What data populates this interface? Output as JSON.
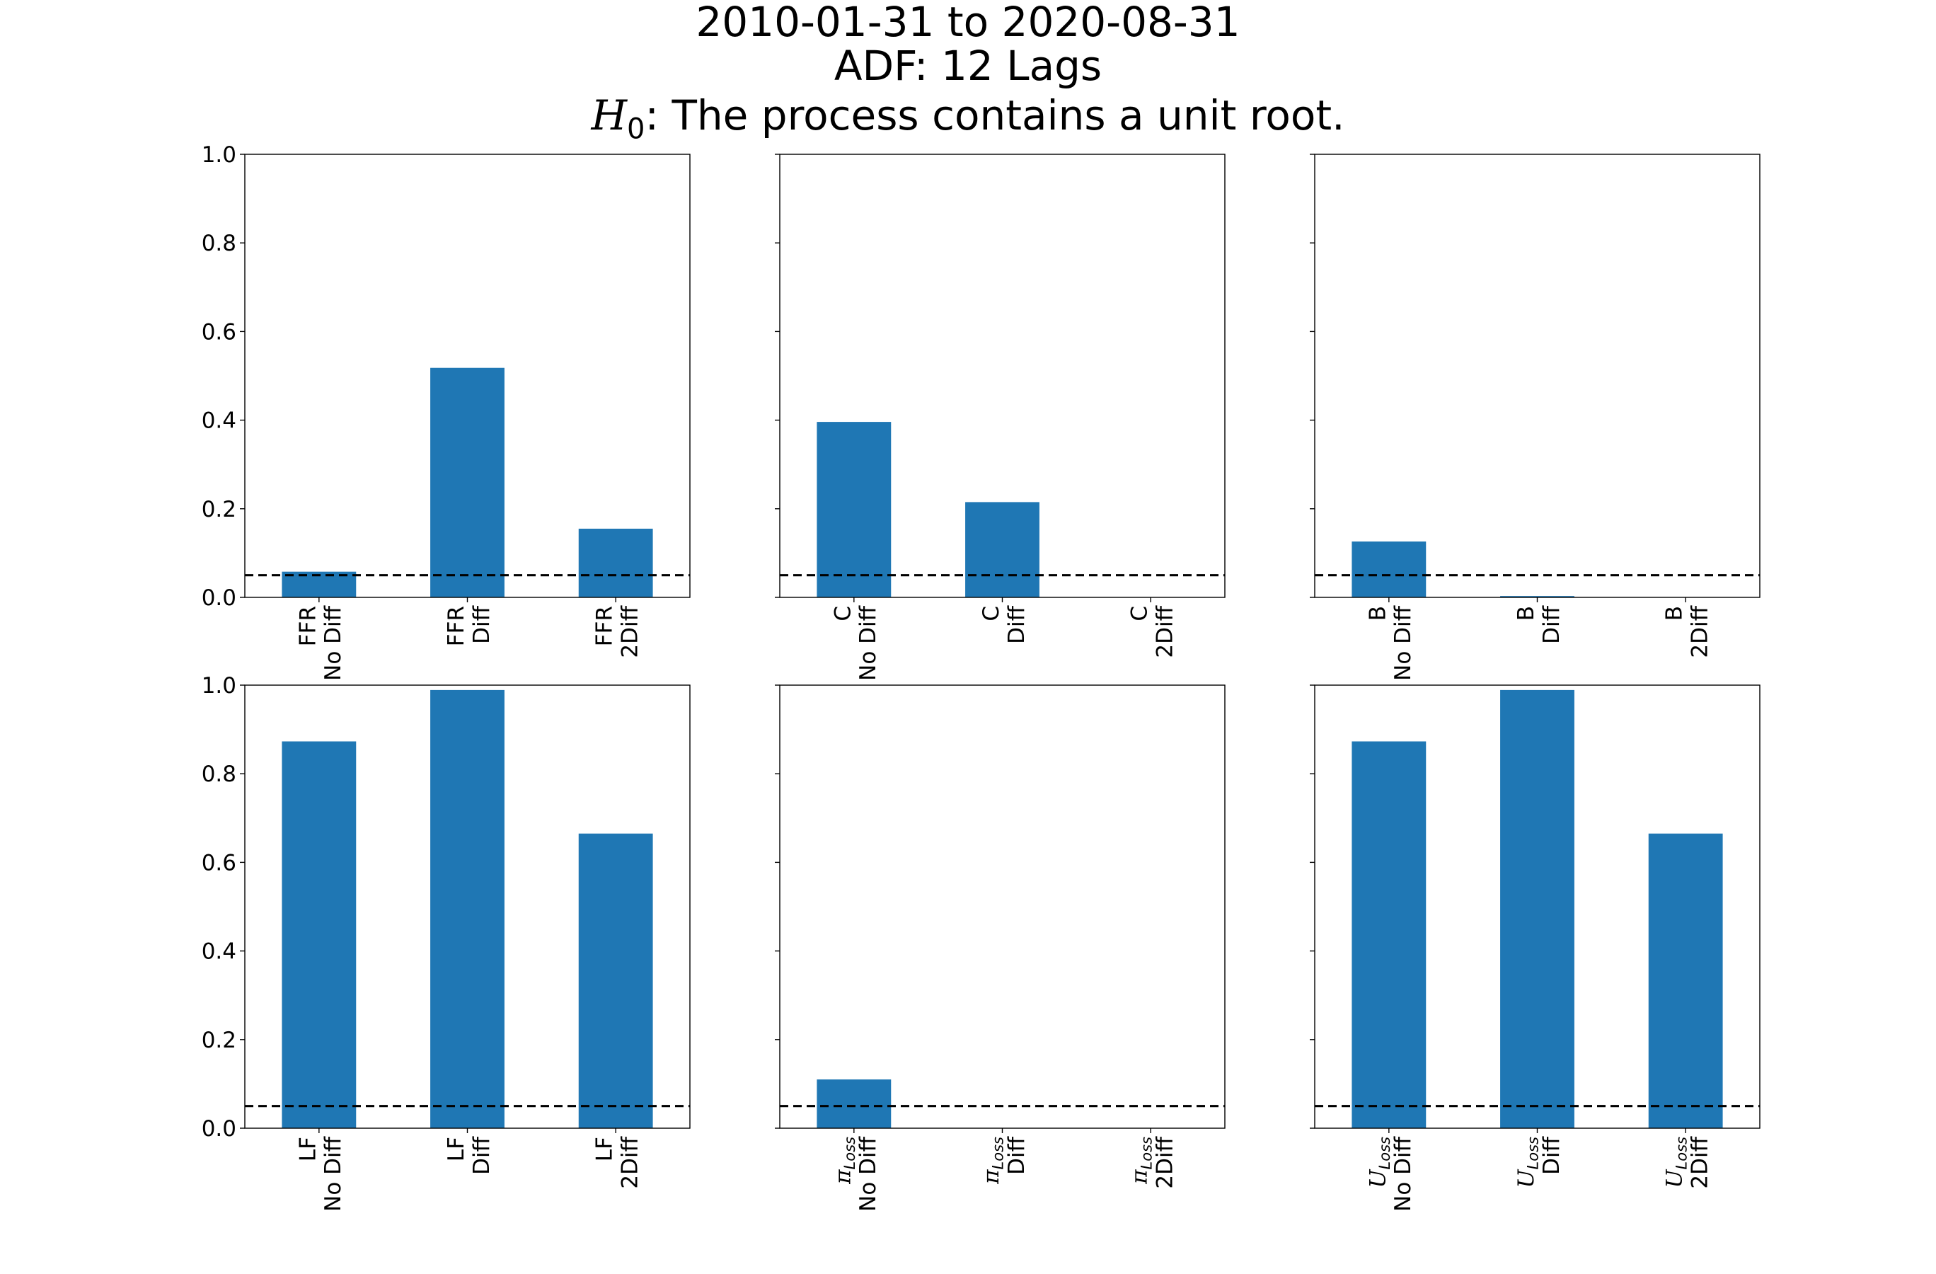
{
  "title": {
    "line1": "2010-01-31 to 2020-08-31",
    "line2": "ADF: 12 Lags",
    "line3_symbol": "H",
    "line3_subscript": "0",
    "line3_text": ":  The process contains a unit root."
  },
  "colors": {
    "bar": "#1f77b4",
    "reference_line": "#000000",
    "axes": "#000000"
  },
  "chart_data": [
    {
      "type": "bar",
      "ylim": [
        0,
        1.0
      ],
      "yticks": [
        "0.0",
        "0.2",
        "0.4",
        "0.6",
        "0.8",
        "1.0"
      ],
      "show_ytick_labels": true,
      "reference_line": 0.05,
      "categories": [
        {
          "name": "FFR",
          "sub": "",
          "diff": "No Diff",
          "value": 0.058
        },
        {
          "name": "FFR",
          "sub": "",
          "diff": "Diff",
          "value": 0.518
        },
        {
          "name": "FFR",
          "sub": "",
          "diff": "2Diff",
          "value": 0.155
        }
      ]
    },
    {
      "type": "bar",
      "ylim": [
        0,
        1.0
      ],
      "yticks": [
        "0.0",
        "0.2",
        "0.4",
        "0.6",
        "0.8",
        "1.0"
      ],
      "show_ytick_labels": false,
      "reference_line": 0.05,
      "categories": [
        {
          "name": "C",
          "sub": "",
          "diff": "No Diff",
          "value": 0.396
        },
        {
          "name": "C",
          "sub": "",
          "diff": "Diff",
          "value": 0.215
        },
        {
          "name": "C",
          "sub": "",
          "diff": "2Diff",
          "value": 0.0
        }
      ]
    },
    {
      "type": "bar",
      "ylim": [
        0,
        1.0
      ],
      "yticks": [
        "0.0",
        "0.2",
        "0.4",
        "0.6",
        "0.8",
        "1.0"
      ],
      "show_ytick_labels": false,
      "reference_line": 0.05,
      "categories": [
        {
          "name": "B",
          "sub": "",
          "diff": "No Diff",
          "value": 0.126
        },
        {
          "name": "B",
          "sub": "",
          "diff": "Diff",
          "value": 0.003
        },
        {
          "name": "B",
          "sub": "",
          "diff": "2Diff",
          "value": 0.0
        }
      ]
    },
    {
      "type": "bar",
      "ylim": [
        0,
        1.0
      ],
      "yticks": [
        "0.0",
        "0.2",
        "0.4",
        "0.6",
        "0.8",
        "1.0"
      ],
      "show_ytick_labels": true,
      "reference_line": 0.05,
      "categories": [
        {
          "name": "LF",
          "sub": "",
          "diff": "No Diff",
          "value": 0.873
        },
        {
          "name": "LF",
          "sub": "",
          "diff": "Diff",
          "value": 0.989
        },
        {
          "name": "LF",
          "sub": "",
          "diff": "2Diff",
          "value": 0.665
        }
      ]
    },
    {
      "type": "bar",
      "ylim": [
        0,
        1.0
      ],
      "yticks": [
        "0.0",
        "0.2",
        "0.4",
        "0.6",
        "0.8",
        "1.0"
      ],
      "show_ytick_labels": false,
      "reference_line": 0.05,
      "categories": [
        {
          "name": "π",
          "sub": "Loss",
          "diff": "No Diff",
          "value": 0.11
        },
        {
          "name": "π",
          "sub": "Loss",
          "diff": "Diff",
          "value": 0.0
        },
        {
          "name": "π",
          "sub": "Loss",
          "diff": "2Diff",
          "value": 0.0
        }
      ]
    },
    {
      "type": "bar",
      "ylim": [
        0,
        1.0
      ],
      "yticks": [
        "0.0",
        "0.2",
        "0.4",
        "0.6",
        "0.8",
        "1.0"
      ],
      "show_ytick_labels": false,
      "reference_line": 0.05,
      "categories": [
        {
          "name": "U",
          "sub": "Loss",
          "diff": "No Diff",
          "value": 0.873
        },
        {
          "name": "U",
          "sub": "Loss",
          "diff": "Diff",
          "value": 0.989
        },
        {
          "name": "U",
          "sub": "Loss",
          "diff": "2Diff",
          "value": 0.665
        }
      ]
    }
  ]
}
